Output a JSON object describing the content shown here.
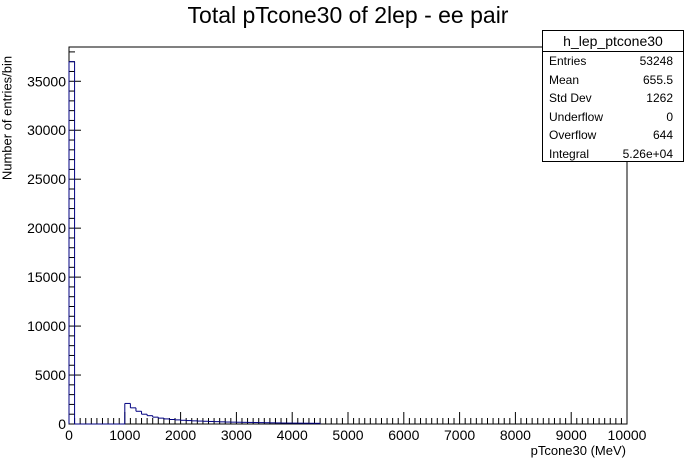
{
  "title": "Total pTcone30 of 2lep - ee pair",
  "stats": {
    "name": "h_lep_ptcone30",
    "rows": [
      {
        "label": "Entries",
        "value": "53248"
      },
      {
        "label": "Mean",
        "value": "655.5"
      },
      {
        "label": "Std Dev",
        "value": "1262"
      },
      {
        "label": "Underflow",
        "value": "0"
      },
      {
        "label": "Overflow",
        "value": "644"
      },
      {
        "label": "Integral",
        "value": "5.26e+04"
      }
    ]
  },
  "colors": {
    "line": "#000080",
    "axis": "#000000"
  },
  "chart_data": {
    "type": "bar",
    "title": "Total pTcone30 of 2lep - ee pair",
    "xlabel": "pTcone30 (MeV)",
    "ylabel": "Number of entries/bin",
    "xlim": [
      0,
      10000
    ],
    "ylim": [
      0,
      38500
    ],
    "bin_width": 100,
    "x_ticks": [
      0,
      1000,
      2000,
      3000,
      4000,
      5000,
      6000,
      7000,
      8000,
      9000,
      10000
    ],
    "y_ticks": [
      0,
      5000,
      10000,
      15000,
      20000,
      25000,
      30000,
      35000
    ],
    "bin_edges_start": [
      0,
      100,
      200,
      300,
      400,
      500,
      600,
      700,
      800,
      900,
      1000,
      1100,
      1200,
      1300,
      1400,
      1500,
      1600,
      1700,
      1800,
      1900,
      2000,
      2100,
      2200,
      2300,
      2400,
      2500,
      2600,
      2700,
      2800,
      2900,
      3000,
      3100,
      3200,
      3300,
      3400,
      3500,
      3600,
      3700,
      3800,
      3900,
      4000,
      4100,
      4200,
      4300,
      4400
    ],
    "values": [
      37000,
      0,
      0,
      0,
      0,
      0,
      0,
      0,
      0,
      0,
      2100,
      1650,
      1300,
      1000,
      850,
      700,
      600,
      520,
      460,
      420,
      380,
      350,
      320,
      300,
      280,
      260,
      240,
      220,
      200,
      190,
      180,
      170,
      160,
      150,
      140,
      130,
      120,
      110,
      100,
      95,
      90,
      85,
      80,
      75,
      70
    ],
    "grid": false,
    "legend": "top-right"
  }
}
